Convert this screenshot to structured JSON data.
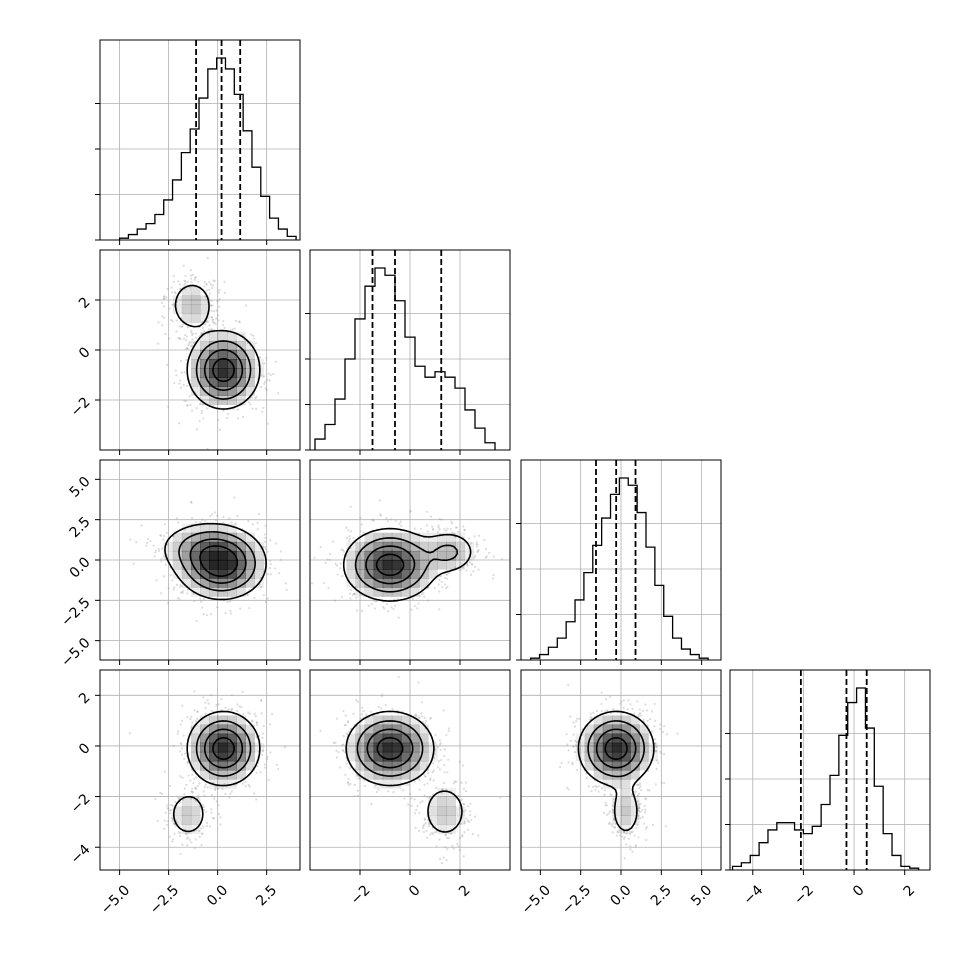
{
  "chart_data": {
    "type": "corner",
    "n_params": 4,
    "grid": true,
    "colors": {
      "line": "#000000",
      "grid": "#b0b0b0",
      "scatter": "#9a9a9a",
      "density": "#000000"
    },
    "axes_limits": [
      [
        -6.0,
        4.2
      ],
      [
        -4.0,
        4.0
      ],
      [
        -6.2,
        6.2
      ],
      [
        -4.9,
        3.0
      ]
    ],
    "tick_values": [
      [
        -5.0,
        -2.5,
        0.0,
        2.5
      ],
      [
        -2,
        0,
        2
      ],
      [
        -5.0,
        -2.5,
        0.0,
        2.5,
        5.0
      ],
      [
        -4,
        -2,
        0,
        2
      ]
    ],
    "tick_labels": [
      [
        "−5.0",
        "−2.5",
        "0.0",
        "2.5"
      ],
      [
        "−2",
        "0",
        "2"
      ],
      [
        "−5.0",
        "−2.5",
        "0.0",
        "2.5",
        "5.0"
      ],
      [
        "−4",
        "−2",
        "0",
        "2"
      ]
    ],
    "quantiles": [
      [
        -1.1,
        0.2,
        1.15
      ],
      [
        -1.5,
        -0.6,
        1.25
      ],
      [
        -1.55,
        -0.3,
        0.9
      ],
      [
        -2.1,
        -0.3,
        0.5
      ]
    ],
    "histograms": [
      {
        "start": -5.0,
        "width": 0.45,
        "counts": [
          1,
          3,
          6,
          9,
          14,
          22,
          33,
          48,
          61,
          78,
          94,
          100,
          94,
          80,
          60,
          40,
          24,
          12,
          6,
          2
        ]
      },
      {
        "start": -3.8,
        "width": 0.4,
        "counts": [
          6,
          14,
          28,
          50,
          72,
          90,
          100,
          96,
          82,
          62,
          46,
          40,
          43,
          40,
          34,
          22,
          12,
          4
        ]
      },
      {
        "start": -5.6,
        "width": 0.55,
        "counts": [
          1,
          3,
          7,
          12,
          21,
          33,
          48,
          63,
          78,
          91,
          100,
          96,
          81,
          62,
          41,
          24,
          12,
          6,
          3,
          1
        ]
      },
      {
        "start": -4.8,
        "width": 0.35,
        "counts": [
          2,
          4,
          8,
          15,
          22,
          26,
          26,
          22,
          20,
          24,
          36,
          52,
          74,
          92,
          100,
          78,
          46,
          20,
          8,
          2,
          1
        ]
      }
    ],
    "blobs_2d": {
      "1-0": [
        {
          "x": 0.3,
          "y": -0.8,
          "sx": 0.95,
          "sy": 0.8,
          "w": 1.0
        },
        {
          "x": -1.3,
          "y": 1.8,
          "sx": 0.65,
          "sy": 0.6,
          "w": 0.35
        }
      ],
      "2-0": [
        {
          "x": 0.2,
          "y": -0.3,
          "sx": 1.15,
          "sy": 1.1,
          "w": 1.0
        },
        {
          "x": -0.8,
          "y": 0.8,
          "sx": 1.3,
          "sy": 0.9,
          "w": 0.35
        }
      ],
      "2-1": [
        {
          "x": -0.8,
          "y": -0.3,
          "sx": 0.95,
          "sy": 1.15,
          "w": 1.0
        },
        {
          "x": 1.6,
          "y": 0.5,
          "sx": 0.6,
          "sy": 0.75,
          "w": 0.38
        }
      ],
      "3-0": [
        {
          "x": 0.3,
          "y": -0.1,
          "sx": 0.95,
          "sy": 0.75,
          "w": 1.0
        },
        {
          "x": -1.5,
          "y": -2.7,
          "sx": 0.6,
          "sy": 0.55,
          "w": 0.32
        }
      ],
      "3-1": [
        {
          "x": -0.8,
          "y": -0.1,
          "sx": 0.9,
          "sy": 0.75,
          "w": 1.0
        },
        {
          "x": 1.4,
          "y": -2.6,
          "sx": 0.55,
          "sy": 0.65,
          "w": 0.32
        }
      ],
      "3-2": [
        {
          "x": -0.3,
          "y": -0.1,
          "sx": 1.2,
          "sy": 0.75,
          "w": 1.0
        },
        {
          "x": 0.3,
          "y": -2.6,
          "sx": 0.55,
          "sy": 0.6,
          "w": 0.32
        }
      ]
    },
    "contour_levels": [
      0.15,
      0.35,
      0.6,
      0.85
    ]
  }
}
